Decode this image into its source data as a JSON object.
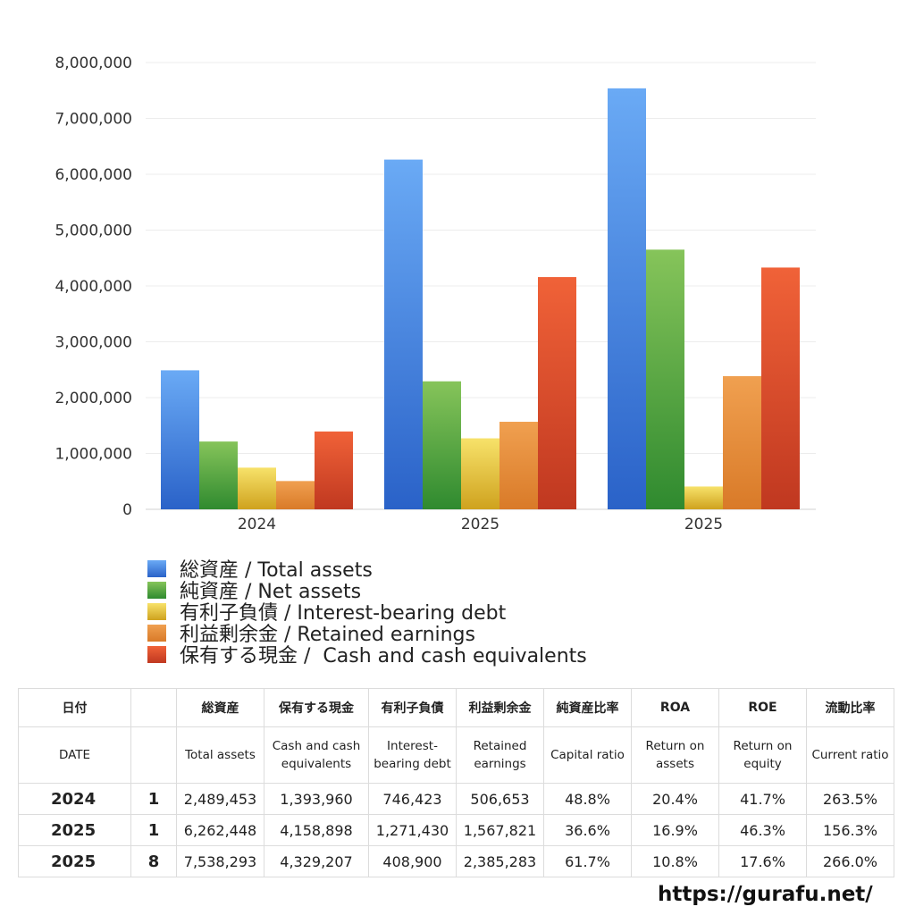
{
  "chart_data": {
    "type": "bar",
    "categories": [
      "2024",
      "2025",
      "2025"
    ],
    "series": [
      {
        "name": "総資産 / Total assets",
        "values": [
          2489453,
          6262448,
          7538293
        ],
        "color_top": "#6aaaf5",
        "color_bottom": "#2a62c8"
      },
      {
        "name": "純資産 / Net assets",
        "values": [
          1214000,
          2292000,
          4650000
        ],
        "color_top": "#86c45a",
        "color_bottom": "#2f8a2f"
      },
      {
        "name": "有利子負債 / Interest-bearing debt",
        "values": [
          746423,
          1271430,
          408900
        ],
        "color_top": "#f7e26a",
        "color_bottom": "#cfa21e"
      },
      {
        "name": "利益剰余金 / Retained earnings",
        "values": [
          506653,
          1567821,
          2385283
        ],
        "color_top": "#f0a050",
        "color_bottom": "#d97a28"
      },
      {
        "name": "保有する現金 /  Cash and cash equivalents",
        "values": [
          1393960,
          4158898,
          4329207
        ],
        "color_top": "#f06238",
        "color_bottom": "#c03820"
      }
    ],
    "ylim": [
      0,
      8000000
    ],
    "yticks": [
      0,
      1000000,
      2000000,
      3000000,
      4000000,
      5000000,
      6000000,
      7000000,
      8000000
    ],
    "ytick_labels": [
      "0",
      "1,000,000",
      "2,000,000",
      "3,000,000",
      "4,000,000",
      "5,000,000",
      "6,000,000",
      "7,000,000",
      "8,000,000"
    ],
    "grid": true,
    "legend_position": "bottom"
  },
  "table": {
    "header_jp": [
      "日付",
      "",
      "総資産",
      "保有する現金",
      "有利子負債",
      "利益剰余金",
      "純資産比率",
      "ROA",
      "ROE",
      "流動比率"
    ],
    "header_en": [
      "DATE",
      "",
      "Total assets",
      "Cash and cash equivalents",
      "Interest-bearing debt",
      "Retained earnings",
      "Capital ratio",
      "Return on assets",
      "Return on equity",
      "Current ratio"
    ],
    "rows": [
      [
        "2024",
        "1",
        "2,489,453",
        "1,393,960",
        "746,423",
        "506,653",
        "48.8%",
        "20.4%",
        "41.7%",
        "263.5%"
      ],
      [
        "2025",
        "1",
        "6,262,448",
        "4,158,898",
        "1,271,430",
        "1,567,821",
        "36.6%",
        "16.9%",
        "46.3%",
        "156.3%"
      ],
      [
        "2025",
        "8",
        "7,538,293",
        "4,329,207",
        "408,900",
        "2,385,283",
        "61.7%",
        "10.8%",
        "17.6%",
        "266.0%"
      ]
    ]
  },
  "site": "https://gurafu.net/"
}
